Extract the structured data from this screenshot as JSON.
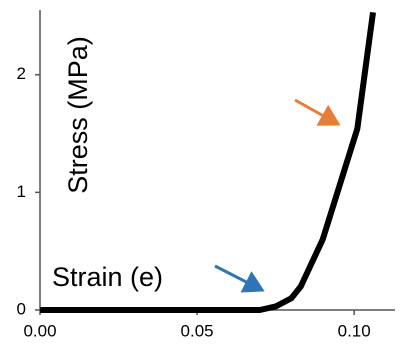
{
  "chart_data": {
    "type": "line",
    "ylabel": "Stress (MPa)",
    "xlabel": "Strain (e)",
    "x": [
      0,
      0.07,
      0.075,
      0.08,
      0.083,
      0.09,
      0.101,
      0.106
    ],
    "values": [
      0,
      0,
      0.03,
      0.1,
      0.2,
      0.6,
      1.54,
      2.53
    ],
    "color": "#000000",
    "xlim": [
      0,
      0.113
    ],
    "xticks": [
      {
        "value": 0,
        "label": "0.00"
      },
      {
        "value": 0.05,
        "label": "0.05"
      },
      {
        "value": 0.1,
        "label": "0.10"
      }
    ],
    "ylim": [
      0,
      2.55
    ],
    "yticks": [
      0,
      1,
      2
    ],
    "grid": false
  }
}
